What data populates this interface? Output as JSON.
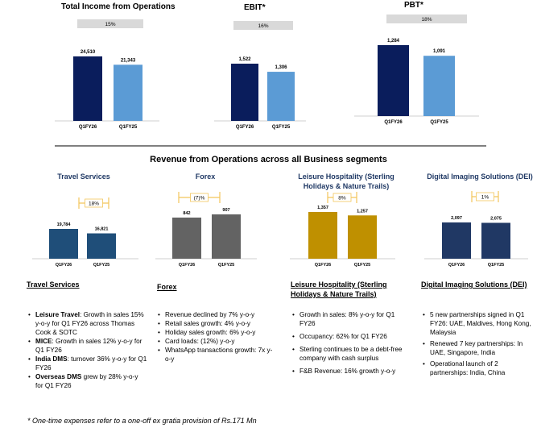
{
  "colors": {
    "navy": "#0a1d5c",
    "light_blue": "#5b9bd5",
    "steel_blue": "#1f4e79",
    "grey": "#636363",
    "gold": "#bf9000",
    "dark_navy": "#203864",
    "growth_pill": "#d9d9d9",
    "bracket": "#f2c55b",
    "title_blue": "#1f3864"
  },
  "section_title": "Revenue from Operations across all Business segments",
  "chart_data": [
    {
      "id": "tio",
      "type": "bar",
      "title": "Total Income from Operations",
      "growth": "15%",
      "categories": [
        "Q1FY26",
        "Q1FY25"
      ],
      "values": [
        24510,
        21343
      ],
      "labels": [
        "24,510",
        "21,343"
      ]
    },
    {
      "id": "ebit",
      "type": "bar",
      "title": "EBIT*",
      "growth": "16%",
      "categories": [
        "Q1FY26",
        "Q1FY25"
      ],
      "values": [
        1522,
        1306
      ],
      "labels": [
        "1,522",
        "1,306"
      ]
    },
    {
      "id": "pbt",
      "type": "bar",
      "title": "PBT*",
      "growth": "18%",
      "categories": [
        "Q1FY26",
        "Q1FY25"
      ],
      "values": [
        1284,
        1091
      ],
      "labels": [
        "1,284",
        "1,091"
      ]
    },
    {
      "id": "travel",
      "type": "bar",
      "title": "Travel Services",
      "growth": "18%",
      "categories": [
        "Q1FY26",
        "Q1FY25"
      ],
      "values": [
        19784,
        16821
      ],
      "labels": [
        "19,784",
        "16,821"
      ]
    },
    {
      "id": "forex",
      "type": "bar",
      "title": "Forex",
      "growth": "(7)%",
      "categories": [
        "Q1FY26",
        "Q1FY25"
      ],
      "values": [
        842,
        907
      ],
      "labels": [
        "842",
        "907"
      ]
    },
    {
      "id": "leisure",
      "type": "bar",
      "title": "Leisure Hospitality (Sterling Holidays & Nature Trails)",
      "growth": "8%",
      "categories": [
        "Q1FY26",
        "Q1FY25"
      ],
      "values": [
        1357,
        1257
      ],
      "labels": [
        "1,357",
        "1,257"
      ]
    },
    {
      "id": "dei",
      "type": "bar",
      "title": "Digital Imaging Solutions (DEI)",
      "growth": "1%",
      "categories": [
        "Q1FY26",
        "Q1FY25"
      ],
      "values": [
        2097,
        2075
      ],
      "labels": [
        "2,097",
        "2,075"
      ]
    }
  ],
  "segments": {
    "travel": {
      "heading": "Travel Services",
      "bullets": [
        {
          "bold": "Leisure Travel",
          "text": ": Growth in sales 15% y-o-y for Q1 FY26 across Thomas Cook & SOTC"
        },
        {
          "bold": "MICE",
          "text": ": Growth in sales 12% y-o-y for Q1 FY26"
        },
        {
          "bold": "India DMS",
          "text": ": turnover 36% y-o-y for Q1 FY26"
        },
        {
          "bold": "Overseas DMS",
          "text": " grew by 28% y-o-y for Q1 FY26"
        }
      ]
    },
    "forex": {
      "heading": "Forex",
      "bullets": [
        {
          "bold": "",
          "text": "Revenue declined by 7% y-o-y"
        },
        {
          "bold": "",
          "text": "Retail sales growth: 4% y-o-y"
        },
        {
          "bold": "",
          "text": "Holiday sales growth: 6% y-o-y"
        },
        {
          "bold": "",
          "text": "Card loads: (12%) y-o-y"
        },
        {
          "bold": "",
          "text": "WhatsApp transactions growth: 7x y-o-y"
        }
      ]
    },
    "leisure": {
      "heading": "Leisure Hospitality (Sterling Holidays & Nature Trails)",
      "bullets": [
        {
          "bold": "",
          "text": "Growth in sales: 8% y-o-y for Q1 FY26"
        },
        {
          "bold": "",
          "text": "Occupancy: 62% for Q1 FY26"
        },
        {
          "bold": "",
          "text": "Sterling continues to be a debt-free company with cash surplus"
        },
        {
          "bold": "",
          "text": "F&B Revenue: 16% growth y-o-y"
        }
      ]
    },
    "dei": {
      "heading": "Digital Imaging Solutions (DEI)",
      "bullets": [
        {
          "bold": "",
          "text": "5 new partnerships signed in Q1 FY26: UAE, Maldives, Hong Kong, Malaysia"
        },
        {
          "bold": "",
          "text": "Renewed 7 key partnerships: In UAE, Singapore, India"
        },
        {
          "bold": "",
          "text": "Operational launch of 2 partnerships: India, China"
        }
      ]
    }
  },
  "footnote": "* One-time expenses refer to a one-off ex gratia provision of Rs.171 Mn"
}
